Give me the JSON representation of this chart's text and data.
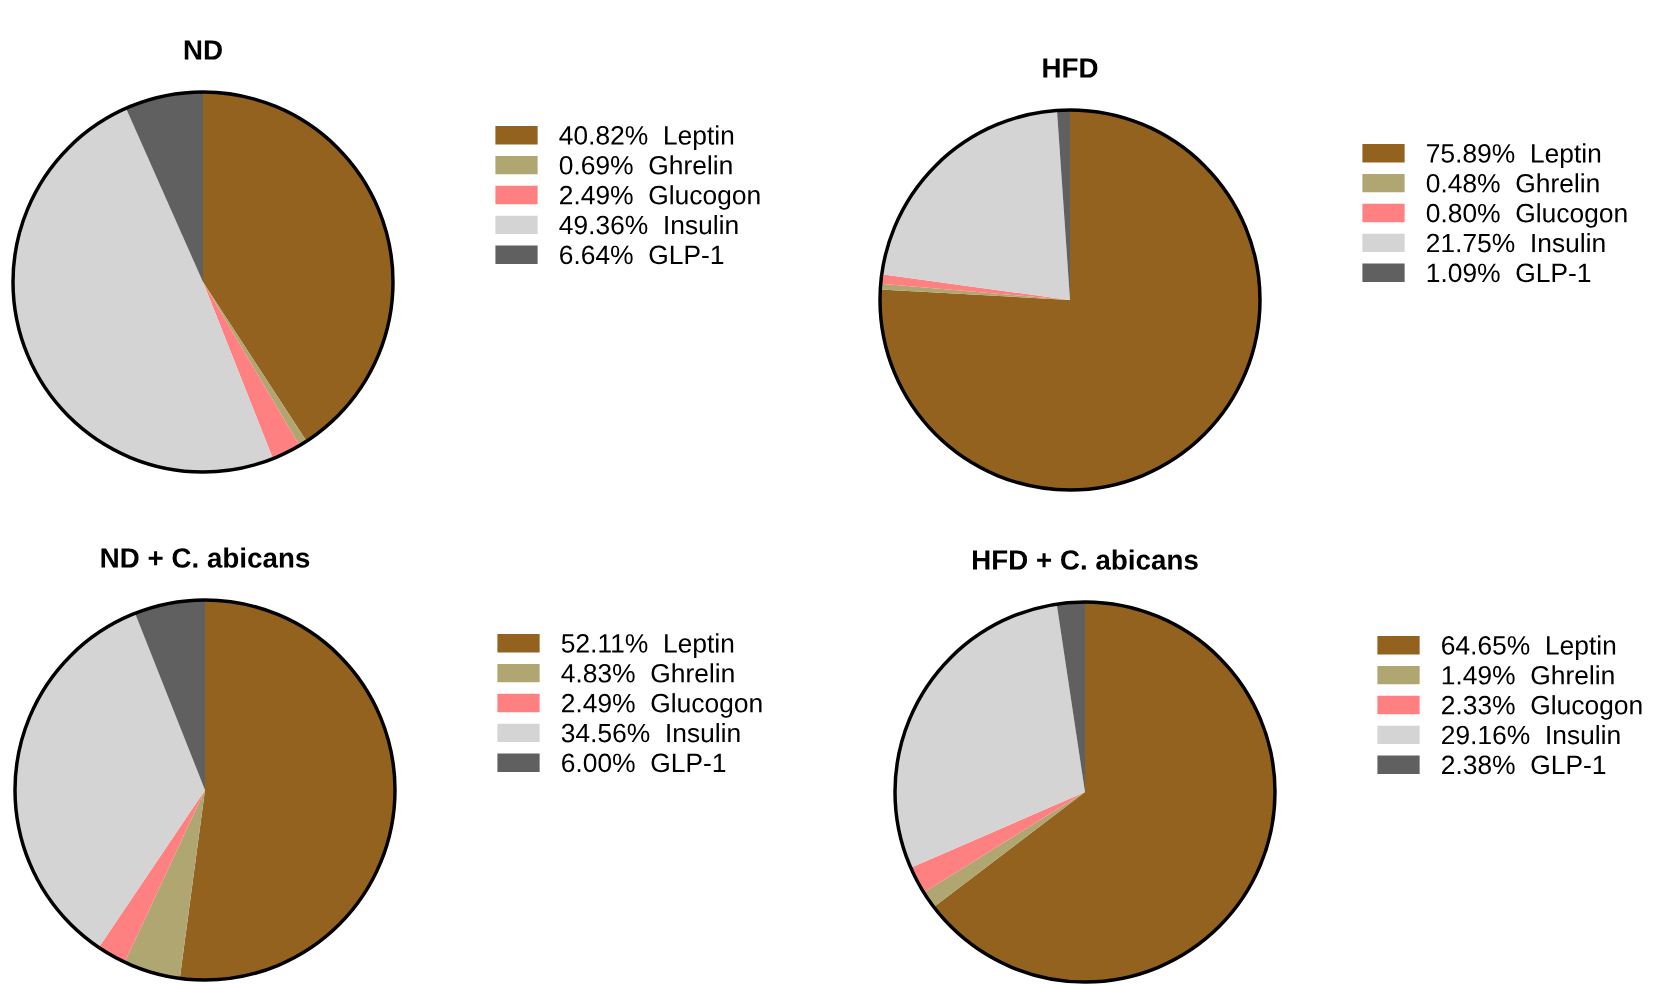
{
  "chart_data": [
    {
      "type": "pie",
      "title": "ND",
      "categories": [
        "Leptin",
        "Ghrelin",
        "Glucogon",
        "Insulin",
        "GLP-1"
      ],
      "values": [
        40.82,
        0.69,
        2.49,
        49.36,
        6.64
      ],
      "value_labels": [
        "40.82%",
        "0.69%",
        "2.49%",
        "49.36%",
        "6.64%"
      ],
      "colors": [
        "#93621f",
        "#b0a672",
        "#ff8080",
        "#d4d4d4",
        "#606060"
      ],
      "legend": "right"
    },
    {
      "type": "pie",
      "title": "HFD",
      "categories": [
        "Leptin",
        "Ghrelin",
        "Glucogon",
        "Insulin",
        "GLP-1"
      ],
      "values": [
        75.89,
        0.48,
        0.8,
        21.75,
        1.09
      ],
      "value_labels": [
        "75.89%",
        "0.48%",
        "0.80%",
        "21.75%",
        "1.09%"
      ],
      "colors": [
        "#93621f",
        "#b0a672",
        "#ff8080",
        "#d4d4d4",
        "#606060"
      ],
      "legend": "right"
    },
    {
      "type": "pie",
      "title": "ND + C. abicans",
      "categories": [
        "Leptin",
        "Ghrelin",
        "Glucogon",
        "Insulin",
        "GLP-1"
      ],
      "values": [
        52.11,
        4.83,
        2.49,
        34.56,
        6.0
      ],
      "value_labels": [
        "52.11%",
        "4.83%",
        "2.49%",
        "34.56%",
        "6.00%"
      ],
      "colors": [
        "#93621f",
        "#b0a672",
        "#ff8080",
        "#d4d4d4",
        "#606060"
      ],
      "legend": "right"
    },
    {
      "type": "pie",
      "title": "HFD + C. abicans",
      "categories": [
        "Leptin",
        "Ghrelin",
        "Glucogon",
        "Insulin",
        "GLP-1"
      ],
      "values": [
        64.65,
        1.49,
        2.33,
        29.16,
        2.38
      ],
      "value_labels": [
        "64.65%",
        "1.49%",
        "2.33%",
        "29.16%",
        "2.38%"
      ],
      "colors": [
        "#93621f",
        "#b0a672",
        "#ff8080",
        "#d4d4d4",
        "#606060"
      ],
      "legend": "right"
    }
  ]
}
